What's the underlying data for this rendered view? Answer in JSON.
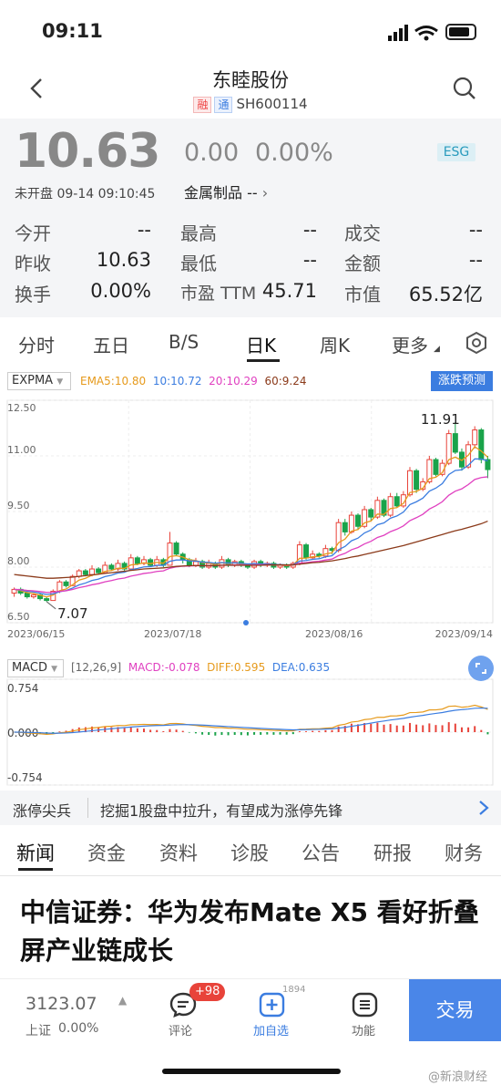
{
  "status_bar": {
    "time": "09:11"
  },
  "nav": {
    "title": "东睦股份",
    "tag_rong": "融",
    "tag_tong": "通",
    "code": "SH600114"
  },
  "quote": {
    "price": "10.63",
    "change": "0.00",
    "change_pct": "0.00%",
    "esg": "ESG",
    "status_time": "未开盘 09-14 09:10:45",
    "sector": "金属制品 --",
    "stats": [
      {
        "label": "今开",
        "value": "--"
      },
      {
        "label": "最高",
        "value": "--"
      },
      {
        "label": "成交",
        "value": "--"
      },
      {
        "label": "昨收",
        "value": "10.63"
      },
      {
        "label": "最低",
        "value": "--"
      },
      {
        "label": "金额",
        "value": "--"
      },
      {
        "label": "换手",
        "value": "0.00%"
      },
      {
        "label": "市盈 TTM",
        "value": "45.71"
      },
      {
        "label": "市值",
        "value": "65.52亿"
      }
    ]
  },
  "chart_tabs": [
    "分时",
    "五日",
    "B/S",
    "日K",
    "周K",
    "更多"
  ],
  "chart_data": [
    {
      "type": "candlestick",
      "indicator": "EXPMA",
      "legend": [
        "EMA5:10.80",
        "10:10.72",
        "20:10.29",
        "60:9.24"
      ],
      "legend_colors": [
        "#e69a1c",
        "#3b7de0",
        "#e040c0",
        "#8b3a1a"
      ],
      "predict_button": "涨跌预测",
      "y_ticks": [
        "12.50",
        "11.00",
        "9.50",
        "8.00",
        "6.50"
      ],
      "ylim": [
        6.5,
        12.5
      ],
      "x_ticks": [
        "2023/06/15",
        "2023/07/18",
        "2023/08/16",
        "2023/09/14"
      ],
      "high_label": "11.91",
      "low_label": "7.07",
      "candles": [
        [
          7.3,
          7.4,
          7.2,
          7.45
        ],
        [
          7.4,
          7.3,
          7.25,
          7.45
        ],
        [
          7.3,
          7.2,
          7.15,
          7.35
        ],
        [
          7.2,
          7.25,
          7.15,
          7.3
        ],
        [
          7.25,
          7.15,
          7.1,
          7.3
        ],
        [
          7.15,
          7.1,
          7.07,
          7.2
        ],
        [
          7.1,
          7.35,
          7.1,
          7.4
        ],
        [
          7.35,
          7.6,
          7.3,
          7.65
        ],
        [
          7.6,
          7.5,
          7.45,
          7.65
        ],
        [
          7.5,
          7.75,
          7.5,
          7.8
        ],
        [
          7.75,
          7.9,
          7.7,
          7.95
        ],
        [
          7.9,
          7.8,
          7.75,
          7.95
        ],
        [
          7.8,
          7.95,
          7.75,
          8.05
        ],
        [
          7.95,
          7.85,
          7.8,
          8.0
        ],
        [
          7.85,
          8.05,
          7.85,
          8.15
        ],
        [
          8.05,
          7.95,
          7.9,
          8.1
        ],
        [
          7.95,
          8.1,
          7.9,
          8.2
        ],
        [
          8.1,
          7.95,
          7.9,
          8.15
        ],
        [
          7.95,
          8.25,
          7.95,
          8.35
        ],
        [
          8.25,
          8.1,
          8.05,
          8.3
        ],
        [
          8.1,
          8.2,
          8.05,
          8.3
        ],
        [
          8.2,
          8.05,
          8.0,
          8.25
        ],
        [
          8.05,
          8.2,
          8.0,
          8.3
        ],
        [
          8.2,
          8.05,
          8.0,
          8.25
        ],
        [
          8.05,
          8.65,
          8.05,
          8.95
        ],
        [
          8.65,
          8.35,
          8.3,
          8.7
        ],
        [
          8.35,
          8.2,
          8.1,
          8.4
        ],
        [
          8.2,
          8.05,
          8.0,
          8.25
        ],
        [
          8.05,
          8.15,
          8.0,
          8.25
        ],
        [
          8.15,
          8.0,
          7.95,
          8.2
        ],
        [
          8.0,
          8.1,
          7.95,
          8.2
        ],
        [
          8.1,
          8.0,
          7.95,
          8.15
        ],
        [
          8.0,
          8.2,
          7.95,
          8.3
        ],
        [
          8.2,
          8.05,
          8.0,
          8.25
        ],
        [
          8.05,
          8.15,
          8.0,
          8.2
        ],
        [
          8.15,
          8.05,
          8.0,
          8.2
        ],
        [
          8.05,
          8.0,
          7.95,
          8.1
        ],
        [
          8.0,
          8.15,
          7.95,
          8.2
        ],
        [
          8.15,
          8.05,
          8.0,
          8.2
        ],
        [
          8.05,
          8.1,
          8.0,
          8.15
        ],
        [
          8.1,
          8.0,
          7.95,
          8.15
        ],
        [
          8.0,
          8.05,
          7.95,
          8.1
        ],
        [
          8.05,
          8.0,
          7.95,
          8.1
        ],
        [
          8.0,
          8.1,
          7.95,
          8.15
        ],
        [
          8.1,
          8.6,
          8.05,
          8.7
        ],
        [
          8.6,
          8.25,
          8.2,
          8.65
        ],
        [
          8.25,
          8.35,
          8.2,
          8.45
        ],
        [
          8.35,
          8.3,
          8.25,
          8.4
        ],
        [
          8.3,
          8.5,
          8.25,
          8.6
        ],
        [
          8.5,
          8.45,
          8.35,
          8.55
        ],
        [
          8.45,
          9.2,
          8.4,
          9.3
        ],
        [
          9.2,
          8.95,
          8.85,
          9.3
        ],
        [
          8.95,
          9.4,
          8.9,
          9.5
        ],
        [
          9.4,
          9.1,
          9.0,
          9.45
        ],
        [
          9.1,
          9.55,
          9.05,
          9.65
        ],
        [
          9.55,
          9.35,
          9.25,
          9.6
        ],
        [
          9.35,
          9.8,
          9.3,
          9.9
        ],
        [
          9.8,
          9.4,
          9.35,
          9.85
        ],
        [
          9.4,
          9.9,
          9.35,
          10.0
        ],
        [
          9.9,
          9.65,
          9.6,
          10.0
        ],
        [
          9.65,
          9.95,
          9.6,
          10.05
        ],
        [
          9.95,
          10.6,
          9.9,
          10.7
        ],
        [
          10.6,
          10.1,
          10.0,
          10.65
        ],
        [
          10.1,
          10.3,
          10.05,
          10.4
        ],
        [
          10.3,
          10.9,
          10.25,
          11.0
        ],
        [
          10.9,
          10.5,
          10.45,
          10.95
        ],
        [
          10.5,
          10.8,
          10.45,
          10.9
        ],
        [
          10.8,
          11.6,
          10.75,
          11.7
        ],
        [
          11.6,
          11.1,
          11.05,
          11.91
        ],
        [
          11.1,
          10.7,
          10.6,
          11.2
        ],
        [
          10.7,
          11.3,
          10.65,
          11.4
        ],
        [
          11.3,
          11.7,
          11.2,
          11.8
        ],
        [
          11.7,
          10.9,
          10.8,
          11.75
        ],
        [
          10.9,
          10.63,
          10.4,
          11.0
        ]
      ],
      "ema60": [
        7.8,
        7.78,
        7.76,
        7.74,
        7.72,
        7.7,
        7.7,
        7.71,
        7.72,
        7.73,
        7.75,
        7.77,
        7.79,
        7.81,
        7.83,
        7.85,
        7.87,
        7.89,
        7.91,
        7.93,
        7.95,
        7.96,
        7.97,
        7.98,
        8.0,
        8.02,
        8.03,
        8.04,
        8.04,
        8.04,
        8.04,
        8.04,
        8.05,
        8.05,
        8.05,
        8.05,
        8.05,
        8.05,
        8.05,
        8.06,
        8.06,
        8.06,
        8.06,
        8.06,
        8.08,
        8.1,
        8.12,
        8.13,
        8.15,
        8.17,
        8.2,
        8.23,
        8.27,
        8.3,
        8.34,
        8.38,
        8.42,
        8.46,
        8.5,
        8.54,
        8.58,
        8.63,
        8.68,
        8.73,
        8.78,
        8.83,
        8.88,
        8.93,
        8.98,
        9.02,
        9.07,
        9.12,
        9.17,
        9.24
      ]
    },
    {
      "type": "bar",
      "indicator": "MACD",
      "params": "[12,26,9]",
      "legend": [
        "MACD:-0.078",
        "DIFF:0.595",
        "DEA:0.635"
      ],
      "legend_colors": [
        "#e040c0",
        "#e69a1c",
        "#3b7de0"
      ],
      "y_ticks": [
        "0.754",
        "0.000",
        "-0.754"
      ],
      "ylim": [
        -0.754,
        0.754
      ]
    }
  ],
  "ticker": {
    "label": "涨停尖兵",
    "text": "挖掘1股盘中拉升，有望成为涨停先锋"
  },
  "news_tabs": [
    "新闻",
    "资金",
    "资料",
    "诊股",
    "公告",
    "研报",
    "财务"
  ],
  "headline": "中信证券：华为发布Mate X5 看好折叠屏产业链成长",
  "bottom": {
    "index_value": "3123.07",
    "index_name": "上证",
    "index_pct": "0.00%",
    "comment_badge": "+98",
    "comment_label": "评论",
    "watch_count": "1894",
    "watch_label": "加自选",
    "func_label": "功能",
    "trade_label": "交易"
  },
  "watermark": "@新浪财经"
}
